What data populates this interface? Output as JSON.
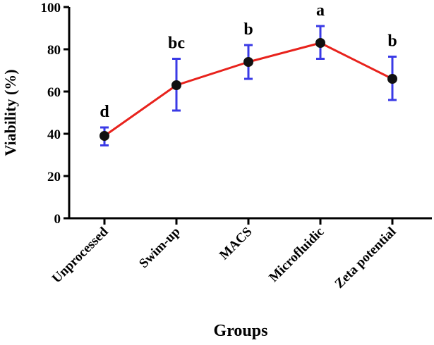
{
  "chart_data": {
    "type": "line",
    "title": "",
    "xlabel": "Groups",
    "ylabel": "Viability (%)",
    "ylim": [
      0,
      100
    ],
    "yticks": [
      0,
      20,
      40,
      60,
      80,
      100
    ],
    "categories": [
      "Unprocessed",
      "Swim-up",
      "MACS",
      "Microfluidic",
      "Zeta potential"
    ],
    "series": [
      {
        "name": "Viability",
        "values": [
          39,
          63,
          74,
          83,
          66
        ],
        "error_lower": [
          34.5,
          51,
          66,
          75.5,
          56
        ],
        "error_upper": [
          43,
          75.5,
          82,
          91,
          76.5
        ]
      }
    ],
    "annotations": [
      "d",
      "bc",
      "b",
      "a",
      "b"
    ],
    "colors": {
      "line": "#e8221c",
      "marker": "#111111",
      "error_bar": "#3a3ae6"
    },
    "grid": false
  }
}
